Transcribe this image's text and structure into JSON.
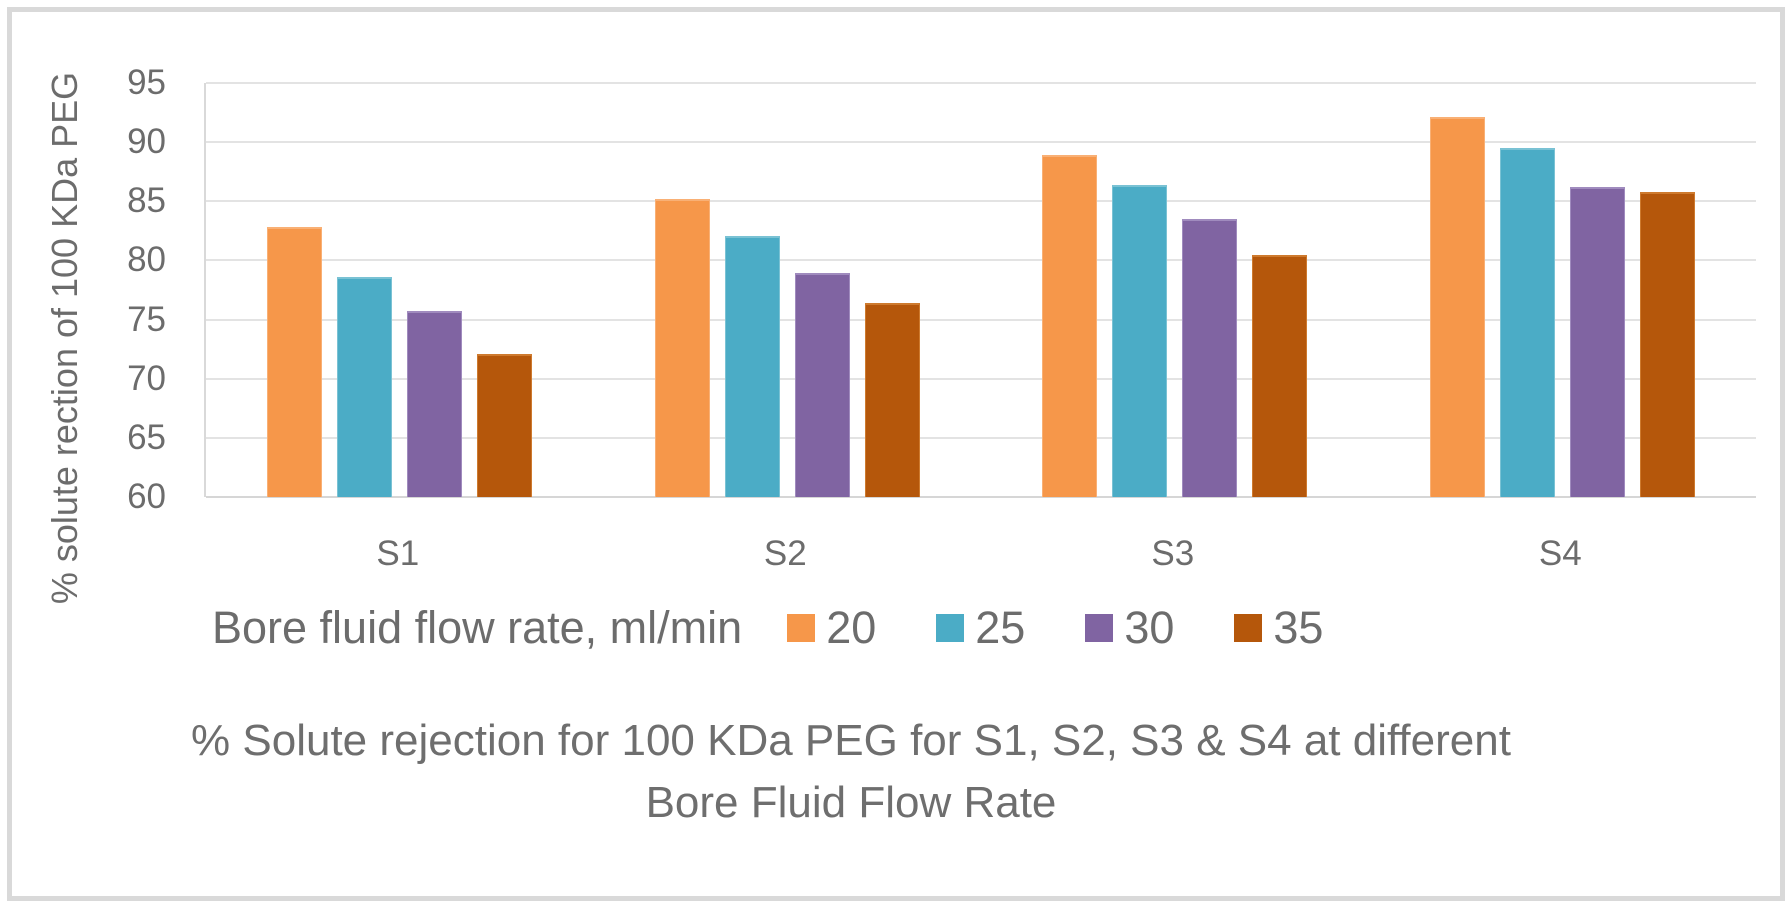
{
  "frame": {
    "border_color": "#D9D9D9",
    "background": "#FFFFFF"
  },
  "chart_data": {
    "type": "bar",
    "title_lines": [
      "% Solute rejection for 100 KDa PEG for S1, S2, S3 & S4 at different",
      "Bore Fluid Flow Rate"
    ],
    "ylabel": "% solute rection of 100 KDa PEG",
    "xlabel": "",
    "legend_title": "Bore fluid flow rate, ml/min",
    "legend_position": "bottom",
    "grid": true,
    "categories": [
      "S1",
      "S2",
      "S3",
      "S4"
    ],
    "series": [
      {
        "name": "20",
        "color": "#F6974A",
        "edge": "#F9B075",
        "values": [
          82.8,
          85.2,
          88.9,
          92.1
        ]
      },
      {
        "name": "25",
        "color": "#4BACC6",
        "edge": "#7AC2D4",
        "values": [
          78.6,
          82.1,
          86.4,
          89.5
        ]
      },
      {
        "name": "30",
        "color": "#8064A2",
        "edge": "#A08BBE",
        "values": [
          75.7,
          78.9,
          83.5,
          86.2
        ]
      },
      {
        "name": "35",
        "color": "#B5570B",
        "edge": "#CE7A2E",
        "values": [
          72.1,
          76.4,
          80.5,
          85.8
        ]
      }
    ],
    "ylim": [
      60,
      95
    ],
    "ytick_step": 5,
    "yticks": [
      60,
      65,
      70,
      75,
      80,
      85,
      90,
      95
    ],
    "grid_color": "#E3E3E3",
    "axis_color": "#D6D6D6",
    "text_color": "#6C6C6C"
  }
}
